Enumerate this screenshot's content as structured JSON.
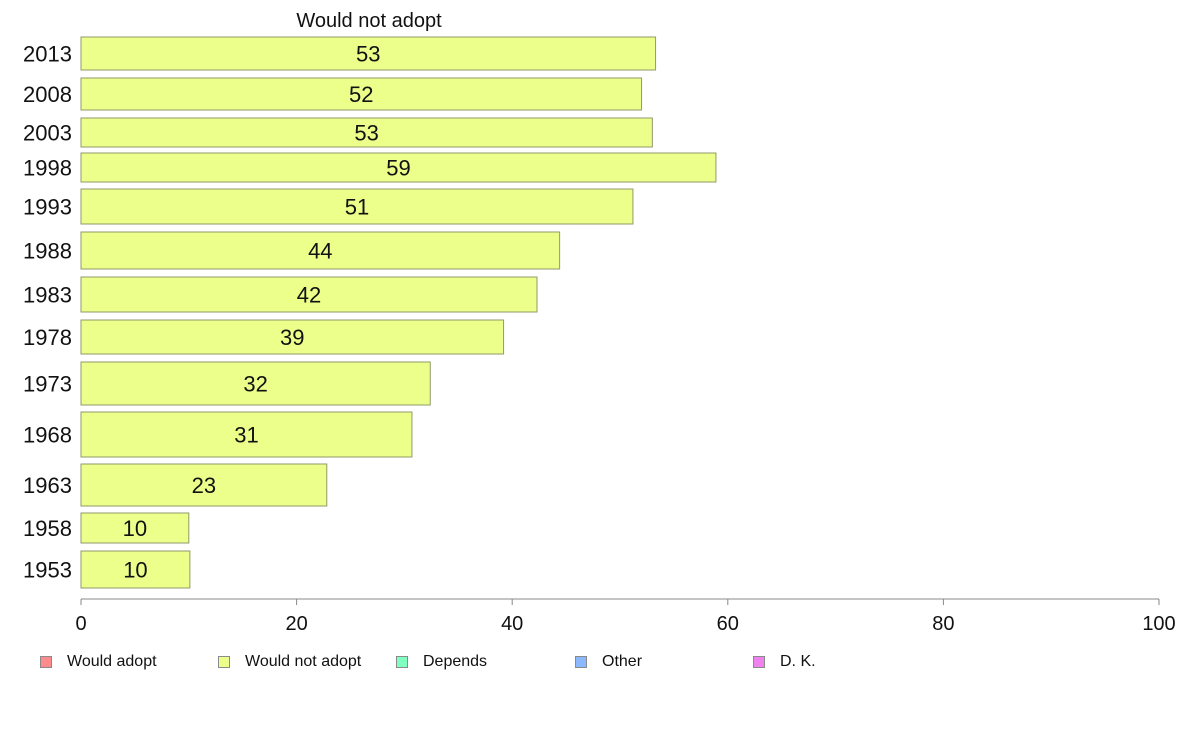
{
  "chart_data": {
    "type": "bar",
    "orientation": "horizontal",
    "title": "Would not adopt",
    "categories": [
      "2013",
      "2008",
      "2003",
      "1998",
      "1993",
      "1988",
      "1983",
      "1978",
      "1973",
      "1968",
      "1963",
      "1958",
      "1953"
    ],
    "series": [
      {
        "name": "Would not adopt",
        "color": "#ecff8a",
        "values": [
          53.3,
          52,
          53,
          58.9,
          51.2,
          44.4,
          42.3,
          39.2,
          32.4,
          30.7,
          22.8,
          10,
          10.1
        ]
      }
    ],
    "data_labels": [
      "53",
      "52",
      "53",
      "59",
      "51",
      "44",
      "42",
      "39",
      "32",
      "31",
      "23",
      "10",
      "10"
    ],
    "xlim": [
      0,
      100
    ],
    "xticks": [
      0,
      20,
      40,
      60,
      80,
      100
    ],
    "grid": false,
    "legend_position": "bottom"
  },
  "legend": [
    {
      "label": "Would adopt",
      "color": "#ff8c8c"
    },
    {
      "label": "Would not adopt",
      "color": "#ecff8a"
    },
    {
      "label": "Depends",
      "color": "#7fffc0"
    },
    {
      "label": "Other",
      "color": "#8cb8ff"
    },
    {
      "label": "D. K.",
      "color": "#ee82ee"
    }
  ]
}
